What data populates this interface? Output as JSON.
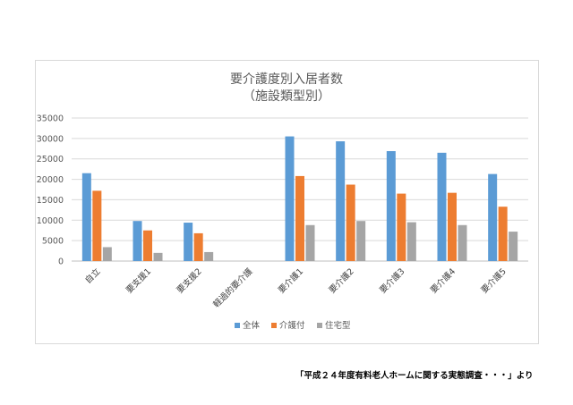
{
  "chart_data": {
    "type": "bar",
    "title": "要介護度別入居者数",
    "subtitle": "（施設類型別）",
    "categories": [
      "自立",
      "要支援1",
      "要支援2",
      "軽過的要介護",
      "要介護1",
      "要介護2",
      "要介護3",
      "要介護4",
      "要介護5"
    ],
    "series": [
      {
        "name": "全体",
        "color": "#5b9bd5",
        "values": [
          21500,
          9800,
          9400,
          null,
          30500,
          29300,
          26900,
          26500,
          21300
        ]
      },
      {
        "name": "介護付",
        "color": "#ed7d31",
        "values": [
          17200,
          7500,
          6800,
          null,
          20800,
          18700,
          16500,
          16700,
          13300
        ]
      },
      {
        "name": "住宅型",
        "color": "#a5a5a5",
        "values": [
          3400,
          2000,
          2200,
          null,
          8800,
          9800,
          9500,
          8800,
          7200
        ]
      }
    ],
    "ylim": [
      0,
      35000
    ],
    "yticks": [
      0,
      5000,
      10000,
      15000,
      20000,
      25000,
      30000,
      35000
    ],
    "ytick_labels": [
      "0",
      "5000",
      "10000",
      "15000",
      "20000",
      "25000",
      "30000",
      "35000"
    ],
    "grid": true,
    "legend": "bottom"
  },
  "source_note": "「平成２４年度有料老人ホームに関する実態調査・・・」より"
}
